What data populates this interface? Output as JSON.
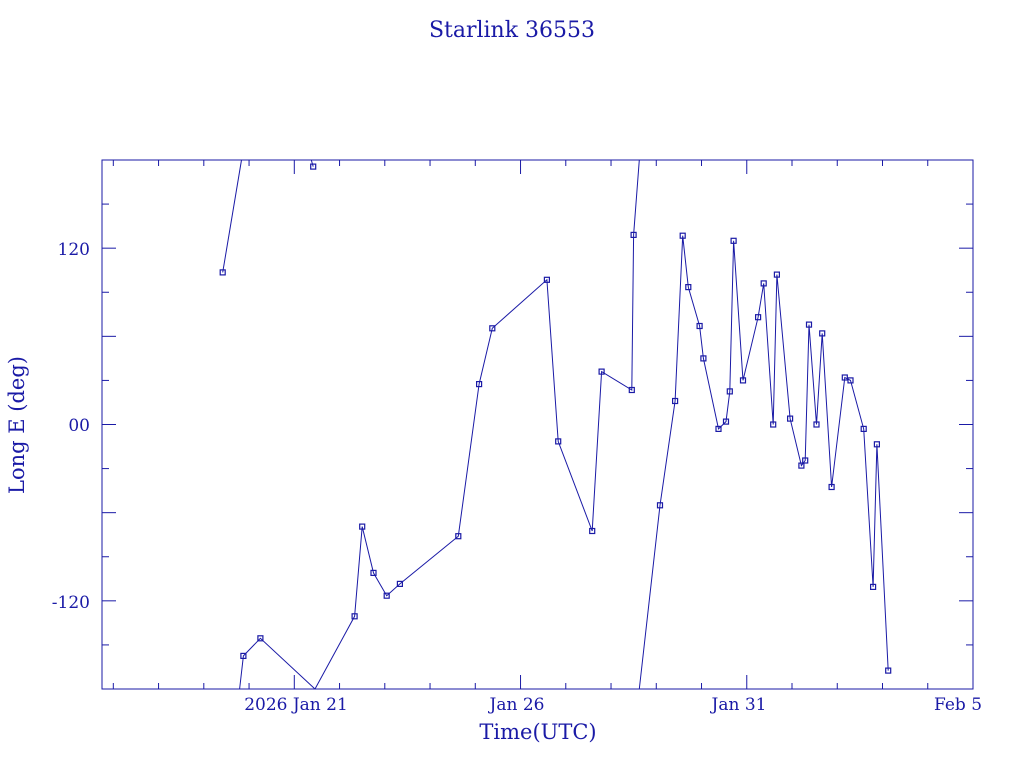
{
  "chart_data": {
    "type": "line",
    "title": "Starlink 36553",
    "xlabel": "Time(UTC)",
    "ylabel": "Long E (deg)",
    "x_tick_labels": [
      "2026 Jan 21",
      "Jan 26",
      "Jan 31",
      "Feb  5"
    ],
    "y_tick_labels": [
      "120",
      "00",
      "-120"
    ],
    "y_tick_values": [
      120,
      0,
      -120
    ],
    "xlim": [
      "2026-01-16 18:00",
      "2026-02-05 00:00"
    ],
    "ylim": [
      -180,
      180
    ],
    "grid": false,
    "color": "#1a1aa6",
    "series": [
      {
        "points": [
          [
            "2026-01-19 10:00",
            103.5
          ],
          [
            "2026-01-19 20:00",
            180
          ],
          null,
          [
            "2026-01-21 09:00",
            180
          ],
          [
            "2026-01-21 10:00",
            175.5
          ],
          null,
          [
            "2026-01-19 19:00",
            -180
          ],
          [
            "2026-01-19 21:00",
            -157.5
          ],
          [
            "2026-01-20 06:00",
            -145.5
          ],
          [
            "2026-01-21 11:00",
            -180
          ],
          null,
          [
            "2026-01-21 11:00",
            -180
          ],
          [
            "2026-01-22 08:00",
            -130.5
          ],
          [
            "2026-01-22 12:00",
            -69.5
          ],
          [
            "2026-01-22 18:00",
            -101
          ],
          [
            "2026-01-23 01:00",
            -116.5
          ],
          [
            "2026-01-23 08:00",
            -108.5
          ],
          [
            "2026-01-24 15:00",
            -76
          ],
          [
            "2026-01-25 02:00",
            27.5
          ],
          [
            "2026-01-25 09:00",
            65.5
          ],
          [
            "2026-01-26 14:00",
            98.5
          ],
          [
            "2026-01-26 20:00",
            -11.5
          ],
          [
            "2026-01-27 14:00",
            -72.5
          ],
          [
            "2026-01-27 19:00",
            36
          ],
          [
            "2026-01-28 11:00",
            23.5
          ],
          [
            "2026-01-28 12:00",
            129
          ],
          [
            "2026-01-28 15:00",
            180
          ],
          null,
          [
            "2026-01-28 15:00",
            -180
          ],
          [
            "2026-01-29 02:00",
            -55
          ],
          [
            "2026-01-29 10:00",
            16
          ],
          [
            "2026-01-29 14:00",
            128.5
          ],
          [
            "2026-01-29 17:00",
            93.5
          ],
          [
            "2026-01-29 23:00",
            67
          ],
          [
            "2026-01-30 01:00",
            45
          ],
          [
            "2026-01-30 09:00",
            -3
          ],
          [
            "2026-01-30 13:00",
            2
          ],
          [
            "2026-01-30 15:00",
            22.5
          ],
          [
            "2026-01-30 17:00",
            125
          ],
          [
            "2026-01-30 22:00",
            30
          ],
          [
            "2026-01-31 06:00",
            73
          ],
          [
            "2026-01-31 09:00",
            96
          ],
          [
            "2026-01-31 14:00",
            0
          ],
          [
            "2026-01-31 16:00",
            102
          ],
          [
            "2026-01-31 23:00",
            4
          ],
          [
            "2026-02-01 05:00",
            -28
          ],
          [
            "2026-02-01 07:00",
            -24.5
          ],
          [
            "2026-02-01 09:00",
            68
          ],
          [
            "2026-02-01 13:00",
            0
          ],
          [
            "2026-02-01 16:00",
            62
          ],
          [
            "2026-02-01 21:00",
            -42.5
          ],
          [
            "2026-02-02 04:00",
            32
          ],
          [
            "2026-02-02 07:00",
            30
          ],
          [
            "2026-02-02 14:00",
            -3
          ],
          [
            "2026-02-02 19:00",
            -110.5
          ],
          [
            "2026-02-02 21:00",
            -13.5
          ],
          [
            "2026-02-03 03:00",
            -167.5
          ]
        ]
      }
    ]
  }
}
